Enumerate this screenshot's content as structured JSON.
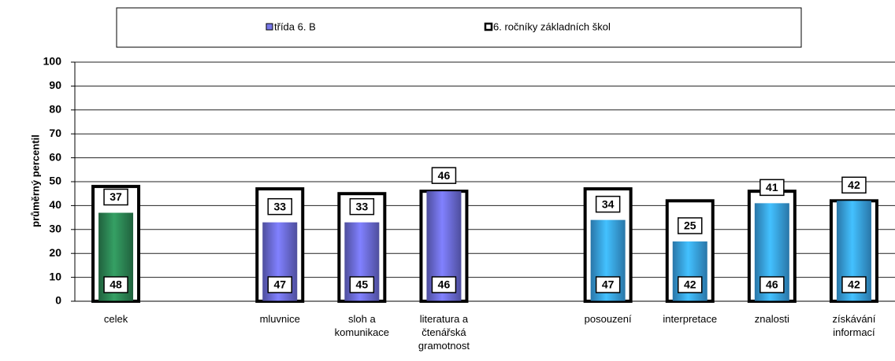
{
  "chart_data": {
    "type": "bar",
    "y_label": "průměrný percentil",
    "categories": [
      "celek",
      null,
      "mluvnice",
      "sloh a\nkomunikace",
      "literatura a\nčtenářská\ngramotnost",
      null,
      "posouzení",
      "interpretace",
      "znalosti",
      "získávání\ninformací"
    ],
    "series": [
      {
        "name": "třída  6. B",
        "color": "#7878e8",
        "colors": [
          "#2e8b57",
          null,
          "#7070e0",
          "#7070e0",
          "#7070e0",
          null,
          "#3aa8f0",
          "#3aa8f0",
          "#3aa8f0",
          "#3aa8f0"
        ],
        "values": [
          37,
          null,
          33,
          33,
          46,
          null,
          34,
          25,
          41,
          42
        ]
      },
      {
        "name": "6. ročníky základních škol",
        "color": "#ffffff",
        "values": [
          48,
          null,
          47,
          45,
          46,
          null,
          47,
          42,
          46,
          42
        ]
      }
    ],
    "ylim": [
      0,
      100
    ],
    "yticks": [
      0,
      10,
      20,
      30,
      40,
      50,
      60,
      70,
      80,
      90,
      100
    ],
    "grid": true,
    "legend": "top"
  }
}
